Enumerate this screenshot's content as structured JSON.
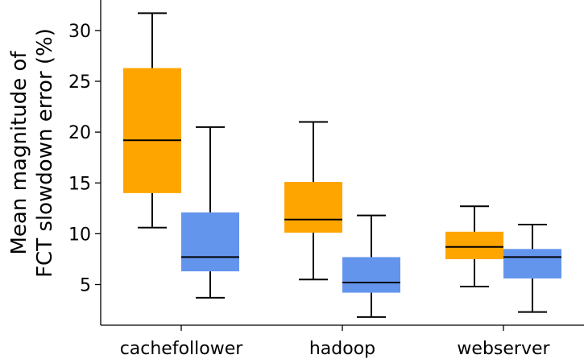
{
  "chart_data": {
    "type": "boxplot",
    "title": "",
    "ylabel": [
      "Mean magnitude of",
      "FCT slowdown error (%)"
    ],
    "xlabel": "",
    "categories": [
      "cachefollower",
      "hadoop",
      "webserver"
    ],
    "ylim": [
      1.0,
      33.0
    ],
    "yticks": [
      5,
      10,
      15,
      20,
      25,
      30
    ],
    "grid": false,
    "legend": "none",
    "series_colors": [
      "#ffa500",
      "#6495ed"
    ],
    "boxes": [
      {
        "category": "cachefollower",
        "series": 0,
        "whisker_low": 10.6,
        "q1": 14.0,
        "median": 19.2,
        "q3": 26.3,
        "whisker_high": 31.7
      },
      {
        "category": "cachefollower",
        "series": 1,
        "whisker_low": 3.7,
        "q1": 6.3,
        "median": 7.7,
        "q3": 12.1,
        "whisker_high": 20.5
      },
      {
        "category": "hadoop",
        "series": 0,
        "whisker_low": 5.5,
        "q1": 10.1,
        "median": 11.4,
        "q3": 15.1,
        "whisker_high": 21.0
      },
      {
        "category": "hadoop",
        "series": 1,
        "whisker_low": 1.8,
        "q1": 4.2,
        "median": 5.2,
        "q3": 7.7,
        "whisker_high": 11.8
      },
      {
        "category": "webserver",
        "series": 0,
        "whisker_low": 4.8,
        "q1": 7.5,
        "median": 8.7,
        "q3": 10.2,
        "whisker_high": 12.7
      },
      {
        "category": "webserver",
        "series": 1,
        "whisker_low": 2.3,
        "q1": 5.6,
        "median": 7.7,
        "q3": 8.5,
        "whisker_high": 10.9
      }
    ]
  }
}
